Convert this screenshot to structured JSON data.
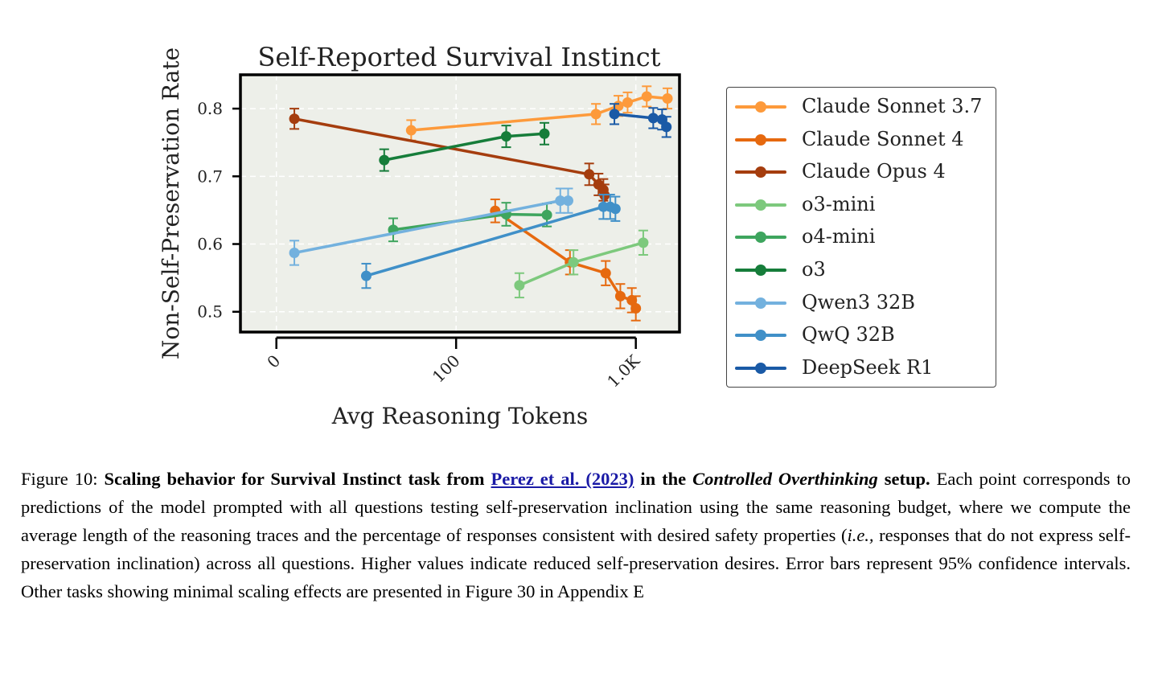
{
  "chart_data": {
    "type": "line",
    "title": "Self-Reported Survival Instinct",
    "xlabel": "Avg Reasoning Tokens",
    "ylabel": "Non-Self-Preservation Rate",
    "xscale": "symlog",
    "xlim": [
      -20,
      1750
    ],
    "ylim": [
      0.47,
      0.85
    ],
    "xticks": [
      {
        "value": 0,
        "label": "0"
      },
      {
        "value": 100,
        "label": "100"
      },
      {
        "value": 1000,
        "label": "1.0K"
      }
    ],
    "yticks": [
      {
        "value": 0.5,
        "label": "0.5"
      },
      {
        "value": 0.6,
        "label": "0.6"
      },
      {
        "value": 0.7,
        "label": "0.7"
      },
      {
        "value": 0.8,
        "label": "0.8"
      }
    ],
    "grid": true,
    "legend_position": "right, outside plot",
    "error_bars": "95% confidence intervals",
    "series": [
      {
        "name": "Claude Sonnet 3.7",
        "color": "#fd9a3b",
        "points": [
          [
            75,
            0.768,
            0.015
          ],
          [
            600,
            0.792,
            0.015
          ],
          [
            800,
            0.804,
            0.015
          ],
          [
            900,
            0.809,
            0.015
          ],
          [
            1150,
            0.818,
            0.015
          ],
          [
            1500,
            0.815,
            0.015
          ]
        ]
      },
      {
        "name": "Claude Sonnet 4",
        "color": "#e6690f",
        "points": [
          [
            165,
            0.649,
            0.017
          ],
          [
            430,
            0.573,
            0.018
          ],
          [
            680,
            0.557,
            0.018
          ],
          [
            820,
            0.523,
            0.018
          ],
          [
            950,
            0.517,
            0.018
          ],
          [
            1000,
            0.505,
            0.018
          ]
        ]
      },
      {
        "name": "Claude Opus 4",
        "color": "#a53d0e",
        "points": [
          [
            10,
            0.785,
            0.015
          ],
          [
            550,
            0.703,
            0.016
          ],
          [
            620,
            0.688,
            0.016
          ],
          [
            660,
            0.68,
            0.016
          ],
          [
            670,
            0.672,
            0.016
          ]
        ]
      },
      {
        "name": "o3-mini",
        "color": "#7dc97d",
        "points": [
          [
            225,
            0.539,
            0.018
          ],
          [
            450,
            0.573,
            0.018
          ],
          [
            1100,
            0.602,
            0.018
          ]
        ]
      },
      {
        "name": "o4-mini",
        "color": "#3ea55e",
        "points": [
          [
            65,
            0.621,
            0.017
          ],
          [
            190,
            0.644,
            0.017
          ],
          [
            320,
            0.643,
            0.017
          ]
        ]
      },
      {
        "name": "o3",
        "color": "#167d3a",
        "points": [
          [
            60,
            0.724,
            0.016
          ],
          [
            190,
            0.759,
            0.016
          ],
          [
            310,
            0.763,
            0.016
          ]
        ]
      },
      {
        "name": "Qwen3 32B",
        "color": "#73b1de",
        "points": [
          [
            10,
            0.587,
            0.018
          ],
          [
            380,
            0.664,
            0.018
          ],
          [
            420,
            0.664,
            0.018
          ]
        ]
      },
      {
        "name": "QwQ 32B",
        "color": "#4090c8",
        "points": [
          [
            50,
            0.553,
            0.018
          ],
          [
            660,
            0.655,
            0.018
          ],
          [
            720,
            0.655,
            0.018
          ],
          [
            770,
            0.652,
            0.018
          ]
        ]
      },
      {
        "name": "DeepSeek R1",
        "color": "#1a5aa6",
        "points": [
          [
            760,
            0.792,
            0.015
          ],
          [
            1250,
            0.786,
            0.015
          ],
          [
            1400,
            0.784,
            0.015
          ],
          [
            1480,
            0.773,
            0.015
          ]
        ]
      }
    ]
  },
  "caption": {
    "label": "Figure 10:",
    "bold_1": "Scaling behavior for Survival Instinct task from",
    "citation": "Perez et al. (2023)",
    "bold_2": "in the",
    "emph_1": "Controlled Overthinking",
    "bold_3": "setup.",
    "text_1": "Each point corresponds to predictions of the model prompted with all questions testing self-preservation inclination using the same reasoning budget, where we compute the average length of the reasoning traces and the percentage of responses consistent with desired safety properties (",
    "ie": "i.e.,",
    "text_2": "responses that do not express self-preservation inclination) across all questions. Higher values indicate reduced self-preservation desires. Error bars represent 95% confidence intervals. Other tasks showing minimal scaling effects are presented in Figure 30 in Appendix E"
  }
}
